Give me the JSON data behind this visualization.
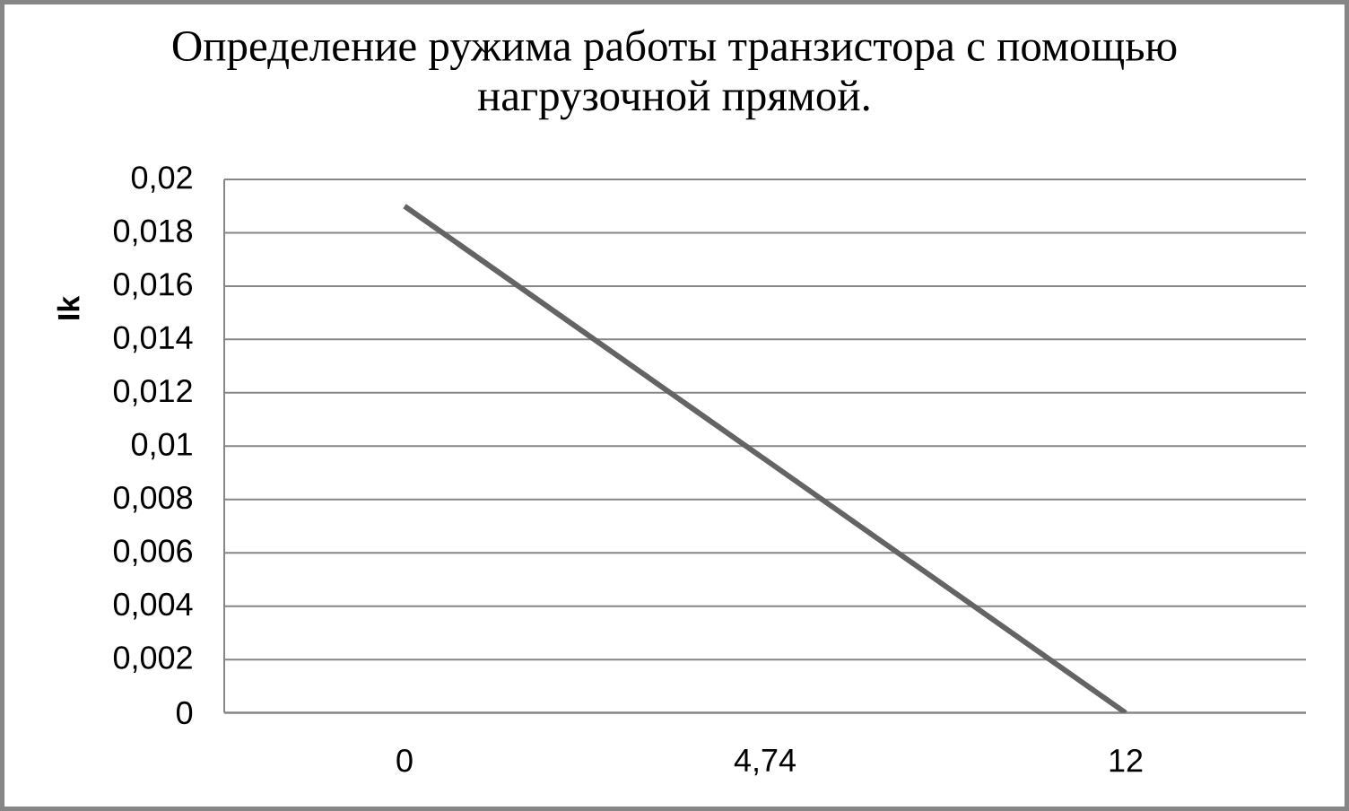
{
  "chart_data": {
    "type": "line",
    "title": "Определение ружима работы транзистора с помощью нагрузочной прямой.",
    "ylabel": "Ik",
    "categories": [
      "0",
      "4,74",
      "12"
    ],
    "series": [
      {
        "color": "#646464",
        "values": [
          0.019,
          0.0095,
          0
        ]
      }
    ],
    "ylim": [
      0,
      0.02
    ],
    "yticks": [
      0,
      {
        "value": 0.002,
        "label": "0,002"
      },
      {
        "value": 0.004,
        "label": "0,004"
      },
      {
        "value": 0.006,
        "label": "0,006"
      },
      {
        "value": 0.008,
        "label": "0,008"
      },
      {
        "value": 0.01,
        "label": "0,01"
      },
      {
        "value": 0.012,
        "label": "0,012"
      },
      {
        "value": 0.014,
        "label": "0,014"
      },
      {
        "value": 0.016,
        "label": "0,016"
      },
      {
        "value": 0.018,
        "label": "0,018"
      },
      {
        "value": 0.02,
        "label": "0,02"
      }
    ],
    "grid": "y",
    "marker": "none",
    "line_style": "solid"
  }
}
